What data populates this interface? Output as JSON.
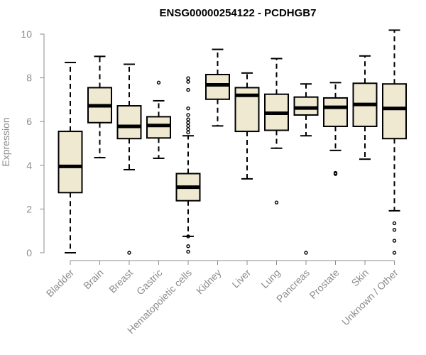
{
  "chart_data": {
    "type": "box",
    "title": "ENSG00000254122 - PCDHGB7",
    "xlabel": "",
    "ylabel": "Expression",
    "ylim": [
      0,
      10.3
    ],
    "yticks": [
      0,
      2,
      4,
      6,
      8,
      10
    ],
    "grid": false,
    "legend": "none",
    "box_fill": "#efe9d2",
    "box_stroke": "#000000",
    "categories": [
      "Bladder",
      "Brain",
      "Breast",
      "Gastric",
      "Hematopoietic cells",
      "Kidney",
      "Liver",
      "Lung",
      "Pancreas",
      "Prostate",
      "Skin",
      "Unknown / Other"
    ],
    "series": [
      {
        "category": "Bladder",
        "min": 0.0,
        "q1": 2.75,
        "median": 3.95,
        "q3": 5.55,
        "max": 8.7,
        "outliers": []
      },
      {
        "category": "Brain",
        "min": 4.35,
        "q1": 5.95,
        "median": 6.72,
        "q3": 7.55,
        "max": 8.98,
        "outliers": []
      },
      {
        "category": "Breast",
        "min": 3.8,
        "q1": 5.22,
        "median": 5.78,
        "q3": 6.72,
        "max": 8.62,
        "outliers": [
          0.0
        ]
      },
      {
        "category": "Gastric",
        "min": 4.32,
        "q1": 5.25,
        "median": 5.82,
        "q3": 6.22,
        "max": 6.95,
        "outliers": [
          7.78
        ]
      },
      {
        "category": "Hematopoietic cells",
        "min": 0.75,
        "q1": 2.38,
        "median": 3.0,
        "q3": 3.62,
        "max": 5.35,
        "outliers": [
          0.05,
          0.3,
          0.75,
          5.5,
          5.65,
          5.8,
          5.95,
          6.1,
          6.3,
          6.6,
          7.45,
          7.82,
          7.98
        ]
      },
      {
        "category": "Kidney",
        "min": 5.8,
        "q1": 7.02,
        "median": 7.68,
        "q3": 8.15,
        "max": 9.3,
        "outliers": []
      },
      {
        "category": "Liver",
        "min": 3.38,
        "q1": 5.55,
        "median": 7.2,
        "q3": 7.55,
        "max": 8.22,
        "outliers": []
      },
      {
        "category": "Lung",
        "min": 4.78,
        "q1": 5.6,
        "median": 6.38,
        "q3": 7.25,
        "max": 8.88,
        "outliers": [
          2.3
        ]
      },
      {
        "category": "Pancreas",
        "min": 5.35,
        "q1": 6.3,
        "median": 6.62,
        "q3": 7.12,
        "max": 7.72,
        "outliers": [
          0.0
        ]
      },
      {
        "category": "Prostate",
        "min": 4.68,
        "q1": 5.78,
        "median": 6.65,
        "q3": 7.08,
        "max": 7.78,
        "outliers": [
          3.6,
          3.65
        ]
      },
      {
        "category": "Skin",
        "min": 4.28,
        "q1": 5.78,
        "median": 6.78,
        "q3": 7.75,
        "max": 9.0,
        "outliers": []
      },
      {
        "category": "Unknown / Other",
        "min": 1.92,
        "q1": 5.22,
        "median": 6.6,
        "q3": 7.72,
        "max": 10.18,
        "outliers": [
          0.0,
          0.55,
          1.05,
          1.35
        ]
      }
    ]
  }
}
